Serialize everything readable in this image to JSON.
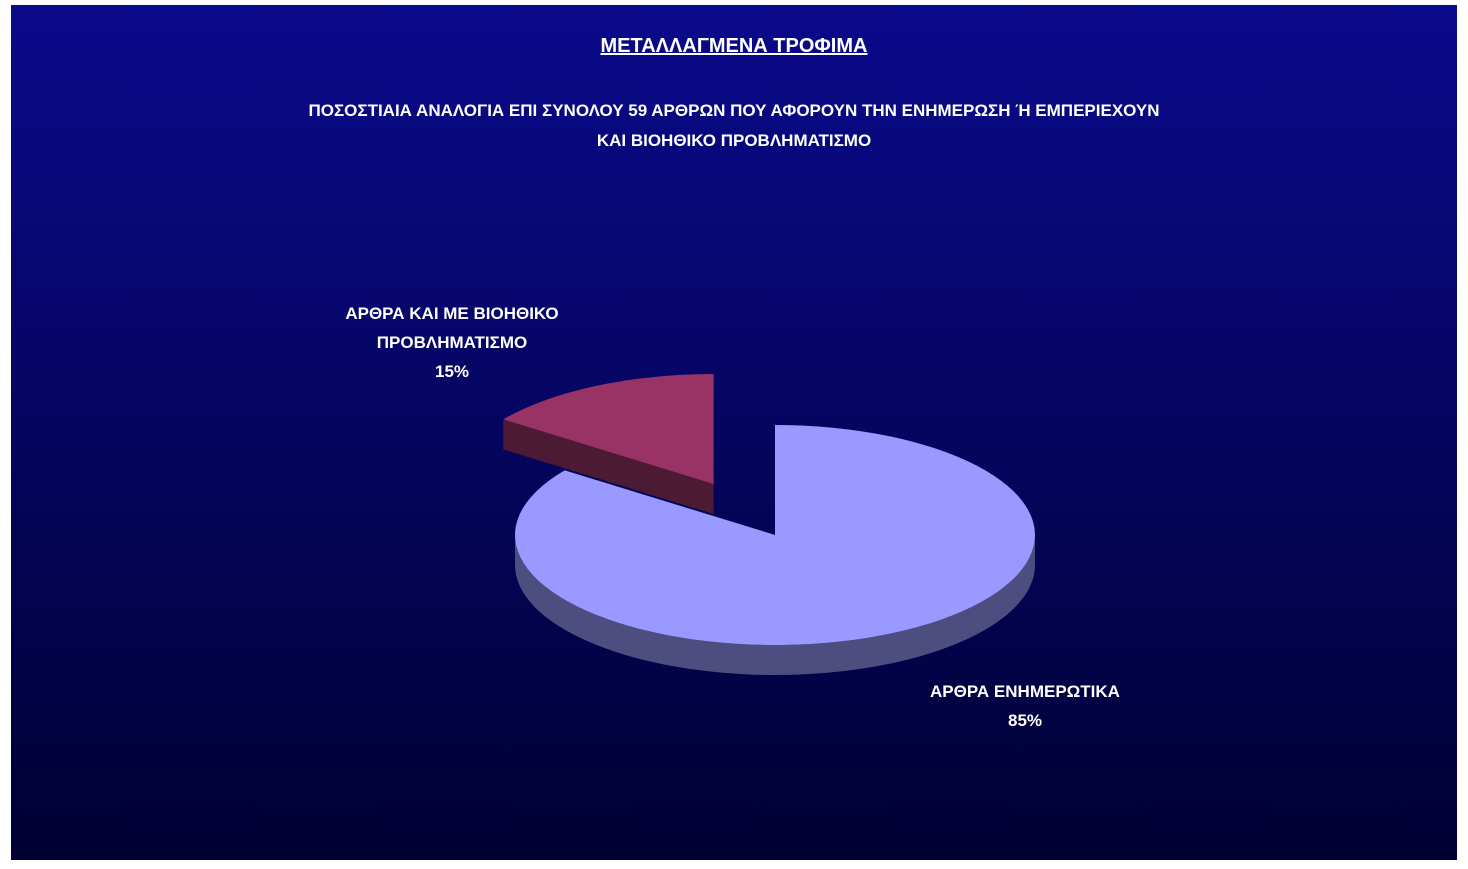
{
  "chart_data": {
    "type": "pie",
    "title": "ΜΕΤΑΛΛΑΓΜΕΝΑ ΤΡΟΦΙΜΑ",
    "subtitle": [
      "ΠΟΣΟΣΤΙΑΙΑ ΑΝΑΛΟΓΙΑ ΕΠΙ ΣΥΝΟΛΟΥ 59 ΑΡΘΡΩΝ ΠΟΥ ΑΦΟΡΟΥΝ ΤΗΝ ΕΝΗΜΕΡΩΣΗ Ή ΕΜΠΕΡΙΕΧΟΥΝ",
      "ΚΑΙ ΒΙΟΗΘΙΚΟ ΠΡΟΒΛΗΜΑΤΙΣΜΟ"
    ],
    "categories": [
      "ΑΡΘΡΑ ΕΝΗΜΕΡΩΤΙΚΑ",
      "ΑΡΘΡΑ ΚΑΙ ΜΕ ΒΙΟΗΘΙΚΟ ΠΡΟΒΛΗΜΑΤΙΣΜΟ"
    ],
    "values": [
      85,
      15
    ],
    "value_labels": [
      "85%",
      "15%"
    ],
    "colors": [
      "#9999ff",
      "#993366"
    ],
    "side_colors": [
      "#4d4d80",
      "#4d1a33"
    ]
  }
}
